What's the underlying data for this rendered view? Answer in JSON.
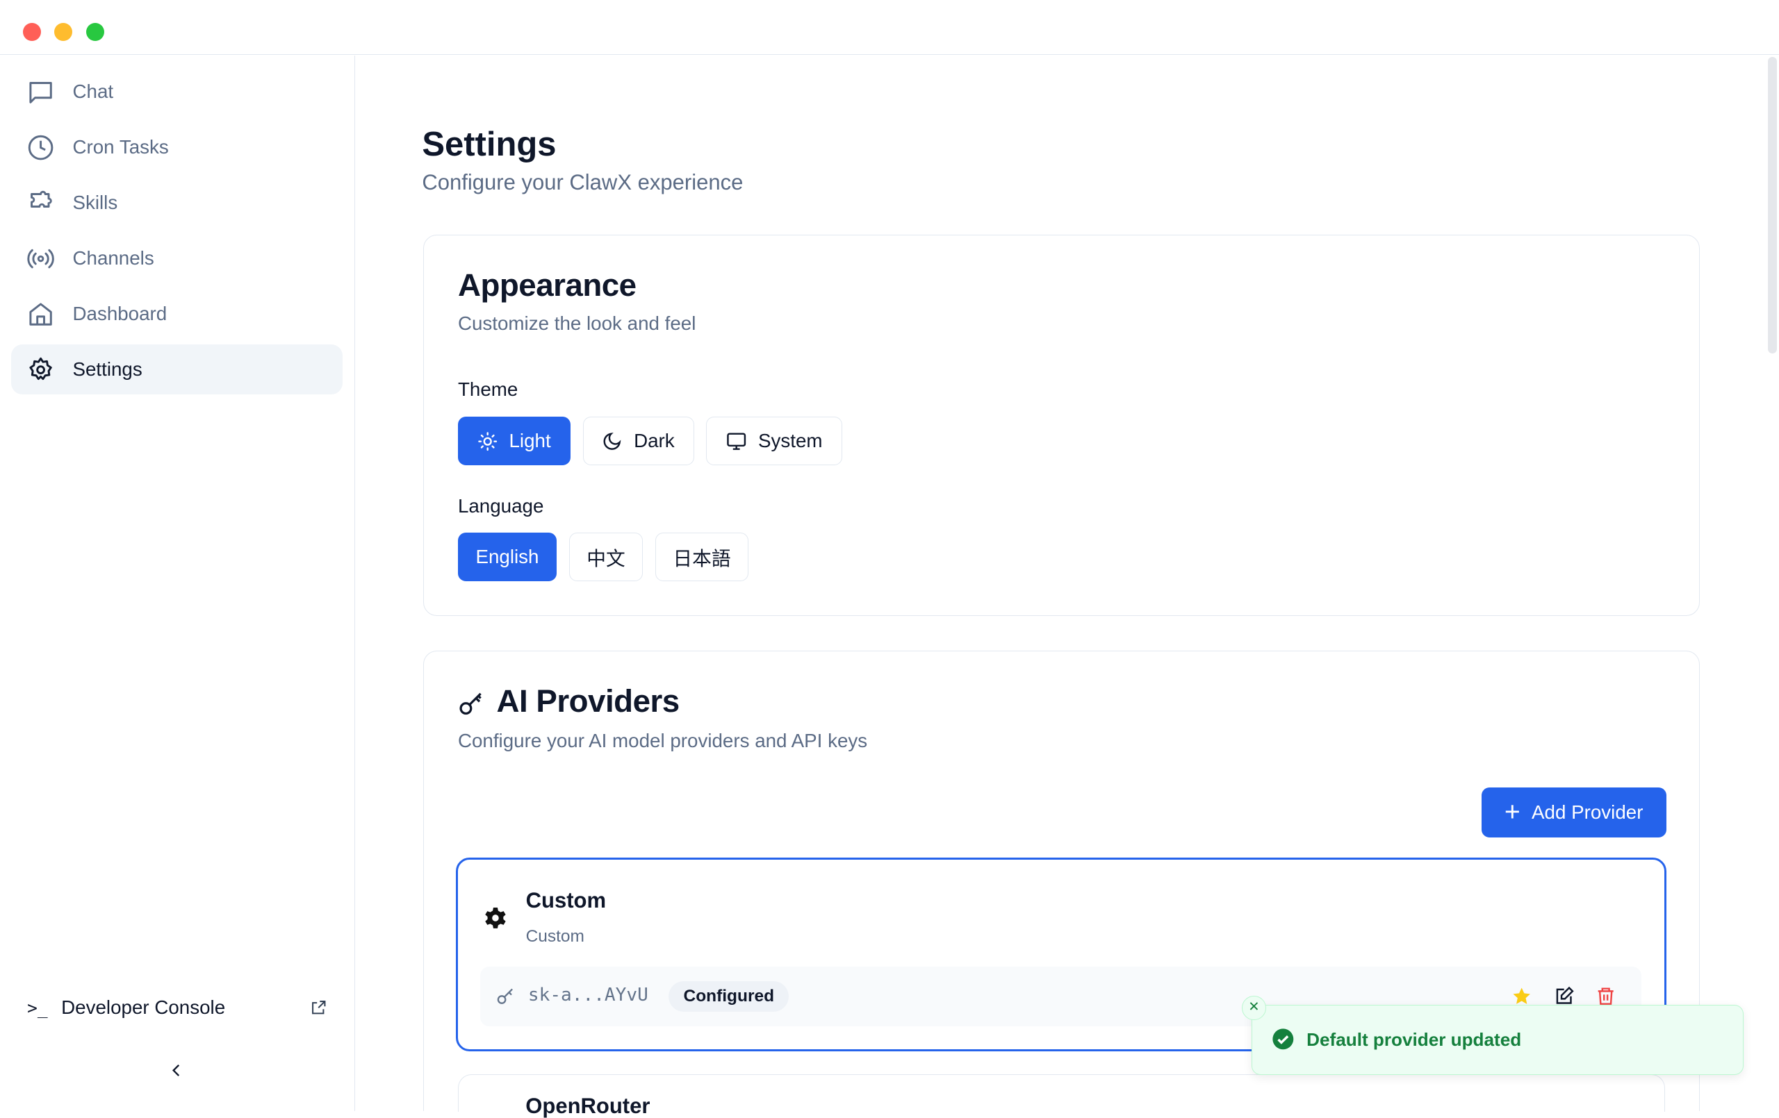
{
  "window": {
    "traffic_lights": [
      "#ff5f57",
      "#febc2e",
      "#28c840"
    ]
  },
  "sidebar": {
    "items": [
      {
        "label": "Chat",
        "icon": "message-square-icon"
      },
      {
        "label": "Cron Tasks",
        "icon": "clock-icon"
      },
      {
        "label": "Skills",
        "icon": "puzzle-icon"
      },
      {
        "label": "Channels",
        "icon": "radio-icon"
      },
      {
        "label": "Dashboard",
        "icon": "home-icon"
      },
      {
        "label": "Settings",
        "icon": "gear-icon",
        "active": true
      }
    ],
    "developer_console": "Developer Console"
  },
  "page": {
    "title": "Settings",
    "subtitle": "Configure your ClawX experience"
  },
  "appearance": {
    "title": "Appearance",
    "subtitle": "Customize the look and feel",
    "theme_label": "Theme",
    "themes": [
      {
        "label": "Light",
        "selected": true
      },
      {
        "label": "Dark"
      },
      {
        "label": "System"
      }
    ],
    "language_label": "Language",
    "languages": [
      {
        "label": "English",
        "selected": true
      },
      {
        "label": "中文"
      },
      {
        "label": "日本語"
      }
    ]
  },
  "providers": {
    "title": "AI Providers",
    "subtitle": "Configure your AI model providers and API keys",
    "add_label": "Add Provider",
    "list": [
      {
        "name": "Custom",
        "type": "Custom",
        "key": "sk-a...AYvU",
        "status": "Configured",
        "default": true
      },
      {
        "name": "OpenRouter"
      }
    ]
  },
  "toast": {
    "message": "Default provider updated",
    "type": "success"
  },
  "colors": {
    "accent": "#2563eb",
    "success": "#15803d",
    "danger": "#ef4444",
    "star": "#facc15"
  }
}
